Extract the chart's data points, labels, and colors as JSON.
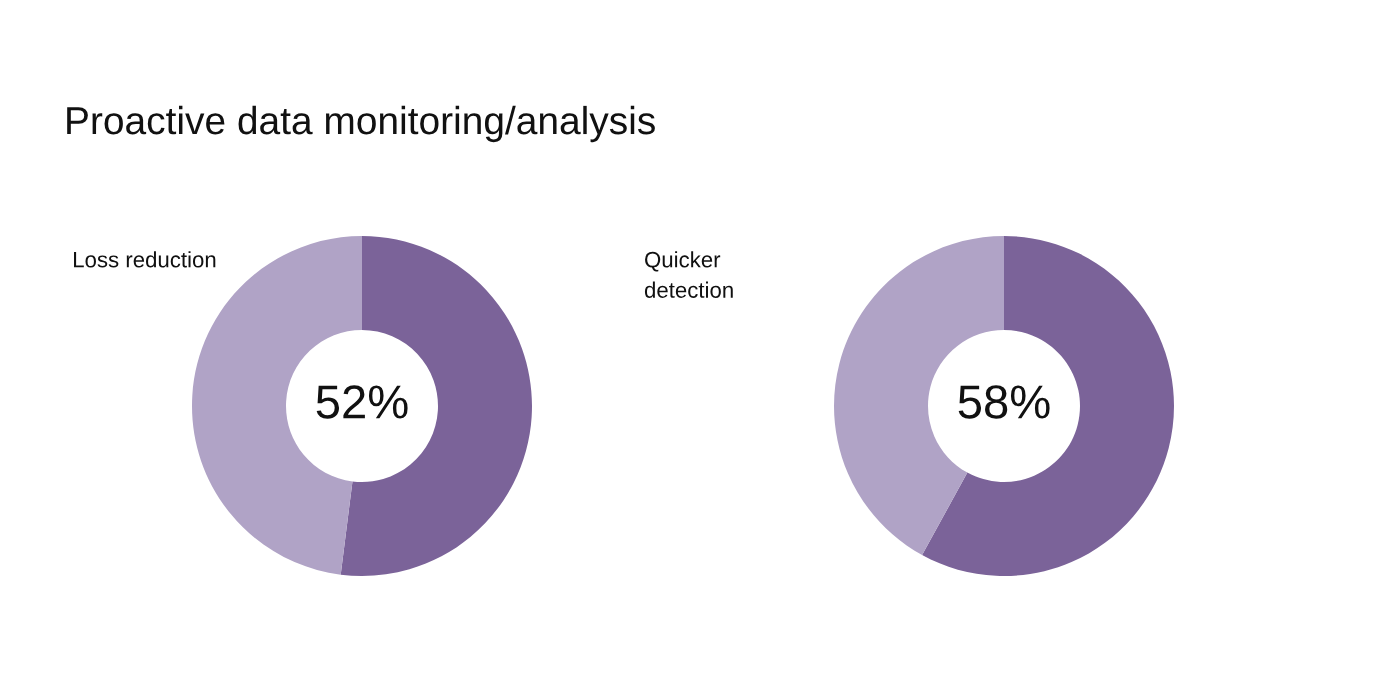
{
  "chart_data": [
    {
      "type": "donut",
      "title": "Proactive data monitoring/analysis",
      "subtitle": "Loss reduction",
      "categories": [
        null,
        null
      ],
      "values": [
        52,
        48
      ],
      "colors": [
        "#7b6399",
        "#b0a3c6"
      ],
      "value_labels": [
        "52%",
        null
      ]
    },
    {
      "type": "donut",
      "subtitle": "Quicker\ndetection",
      "categories": [
        null,
        null
      ],
      "values": [
        58,
        42
      ],
      "colors": [
        "#7b6399",
        "#b0a3c6"
      ],
      "value_labels": [
        "58%",
        null
      ]
    }
  ]
}
